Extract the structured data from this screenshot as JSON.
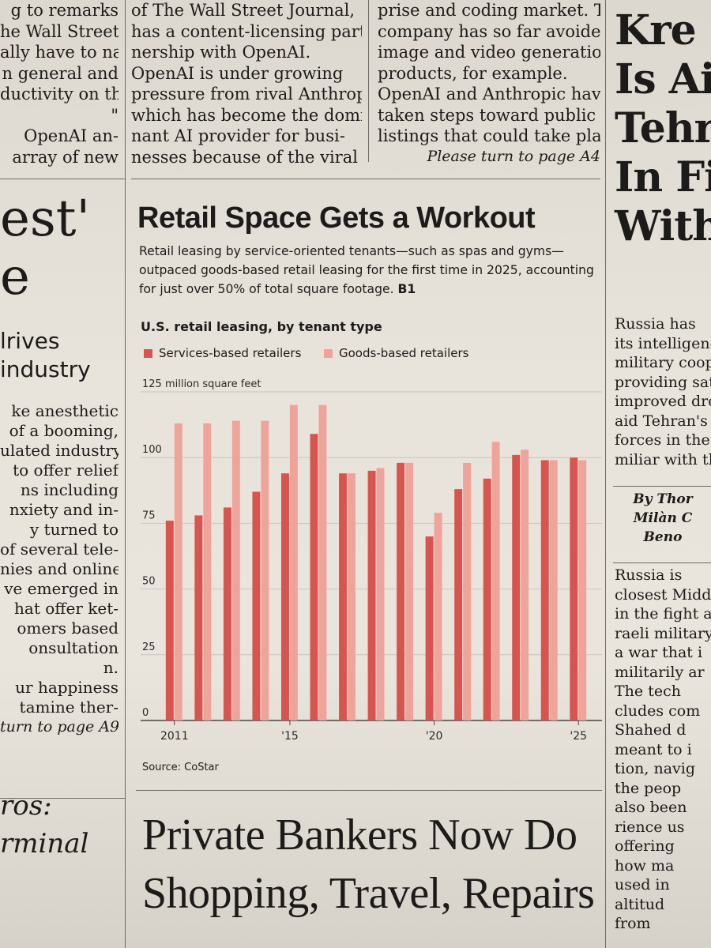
{
  "top_left_lines": [
    "g to remarks",
    "he Wall Street",
    "ally have to nail",
    "n general and",
    "ductivity on the",
    "\"",
    "OpenAI an-",
    "array of new"
  ],
  "top_mid_lines": [
    "of The Wall Street Journal,",
    "has a content-licensing part-",
    "nership with OpenAI.",
    "OpenAI is under growing",
    "pressure from rival Anthropic,",
    "which has become the domi-",
    "nant AI provider for busi-",
    "nesses because of the viral"
  ],
  "top_right_lines": [
    "prise and coding market. The",
    "company has so far avoided",
    "image and video generation",
    "products, for example.",
    "OpenAI and Anthropic have",
    "taken steps toward public",
    "listings that could take place"
  ],
  "top_right_jump": "Please turn to page A4",
  "right_head_lines": [
    "Kre",
    "Is Ai",
    "Tehra",
    "In Fig",
    "With"
  ],
  "right_body_lines": [
    "Russia has",
    "its intelligenc",
    "military cooper",
    "providing satel",
    "improved dron",
    "aid Tehran's t",
    "forces in the r",
    "miliar with th"
  ],
  "right_byline_lines": [
    "By Thor",
    "Milàn C",
    "Beno"
  ],
  "right_body2_lines": [
    "Russia is",
    "closest Midd",
    "in the fight a",
    "raeli military",
    "a war that i",
    "militarily ar",
    "The tech",
    "cludes com",
    "Shahed d",
    "meant to i",
    "tion, navig",
    "the peop",
    "also been",
    "rience us",
    "offering",
    "how ma",
    "used in",
    "altitud",
    "from"
  ],
  "left_big_lines": [
    "est'",
    "e"
  ],
  "left_deck_lines": [
    "lrives",
    "industry"
  ],
  "left_body_lines": [
    "ke anesthetic",
    "of a booming,",
    "ulated industry",
    "to offer relief",
    "ns including",
    "nxiety and in-",
    "y turned to",
    "of several tele-",
    "nies and online",
    "ve emerged in",
    "hat offer ket-",
    "omers based",
    "onsultation",
    "n.",
    "ur happiness",
    "tamine ther-"
  ],
  "left_jump": "turn to page A9",
  "left_bottom_lines": [
    "ros:",
    "rminal"
  ],
  "chart": {
    "headline": "Retail Space Gets a Workout",
    "deck": "Retail leasing by service-oriented tenants—such as spas and gyms—outpaced goods-based retail leasing for the first time in 2025, accounting for just over 50% of total square footage.",
    "deck_ref": "B1",
    "subtitle": "U.S. retail leasing, by tenant type",
    "source": "Source: CoStar",
    "unit_label": "125 million square feet",
    "colors": {
      "services": "#d8544f",
      "goods": "#eea49a"
    }
  },
  "chart_data": {
    "type": "bar",
    "title": "U.S. retail leasing, by tenant type",
    "ylabel": "million square feet",
    "ylim": [
      0,
      125
    ],
    "yticks": [
      "0",
      "25",
      "50",
      "75",
      "100",
      "125"
    ],
    "x": [
      2011,
      2012,
      2013,
      2014,
      2015,
      2016,
      2017,
      2018,
      2019,
      2020,
      2021,
      2022,
      2023,
      2024,
      2025
    ],
    "xtick_labels": [
      {
        "year": 2011,
        "label": "2011"
      },
      {
        "year": 2015,
        "label": "'15"
      },
      {
        "year": 2020,
        "label": "'20"
      },
      {
        "year": 2025,
        "label": "'25"
      }
    ],
    "series": [
      {
        "name": "Services-based retailers",
        "color": "#d8544f",
        "values": [
          76,
          78,
          81,
          87,
          94,
          109,
          94,
          95,
          98,
          70,
          88,
          92,
          101,
          99,
          100
        ]
      },
      {
        "name": "Goods-based retailers",
        "color": "#eea49a",
        "values": [
          113,
          113,
          114,
          114,
          120,
          120,
          94,
          96,
          98,
          79,
          98,
          106,
          103,
          99,
          99
        ]
      }
    ],
    "legend": "top-left",
    "grid": true
  },
  "bottom_headline_lines": [
    "Private Bankers Now Do",
    "Shopping, Travel, Repairs"
  ]
}
